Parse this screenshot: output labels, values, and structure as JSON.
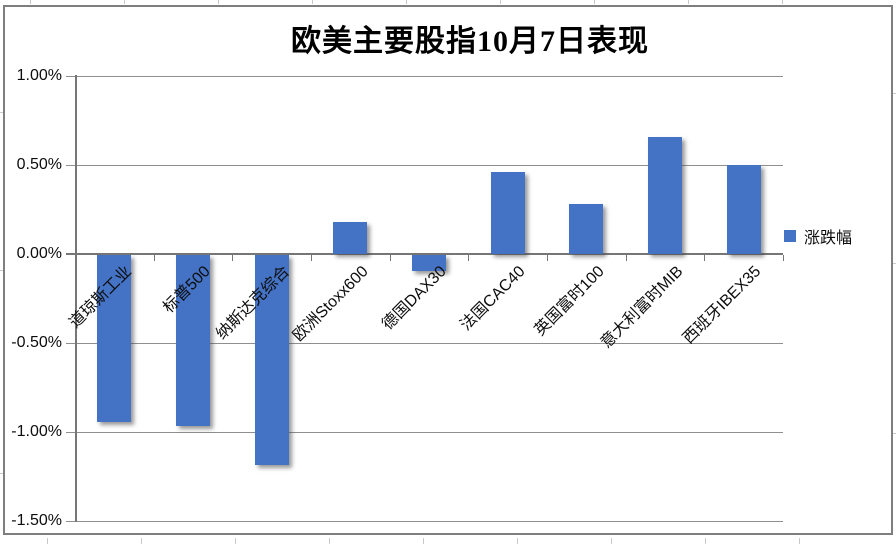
{
  "title": "欧美主要股指10月7日表现",
  "legend": {
    "label": "涨跌幅"
  },
  "y_axis_ticks": [
    "1.00%",
    "0.50%",
    "0.00%",
    "-0.50%",
    "-1.00%",
    "-1.50%"
  ],
  "chart_data": {
    "type": "bar",
    "title": "欧美主要股指10月7日表现",
    "categories": [
      "道琼斯工业",
      "标普500",
      "纳斯达克综合",
      "欧洲Stoxx600",
      "德国DAX30",
      "法国CAC40",
      "英国富时100",
      "意大利富时MIB",
      "西班牙IBEX35"
    ],
    "series": [
      {
        "name": "涨跌幅",
        "values": [
          -0.94,
          -0.96,
          -1.18,
          0.18,
          -0.09,
          0.46,
          0.28,
          0.66,
          0.5
        ]
      }
    ],
    "ylim": [
      -1.5,
      1.0
    ],
    "ytick_step": 0.5,
    "ytick_format": "percent",
    "grid": true,
    "legend_position": "right",
    "bar_color": "#4472C4",
    "gridline_color": "#8F8F8F",
    "axis_color": "#767676"
  }
}
